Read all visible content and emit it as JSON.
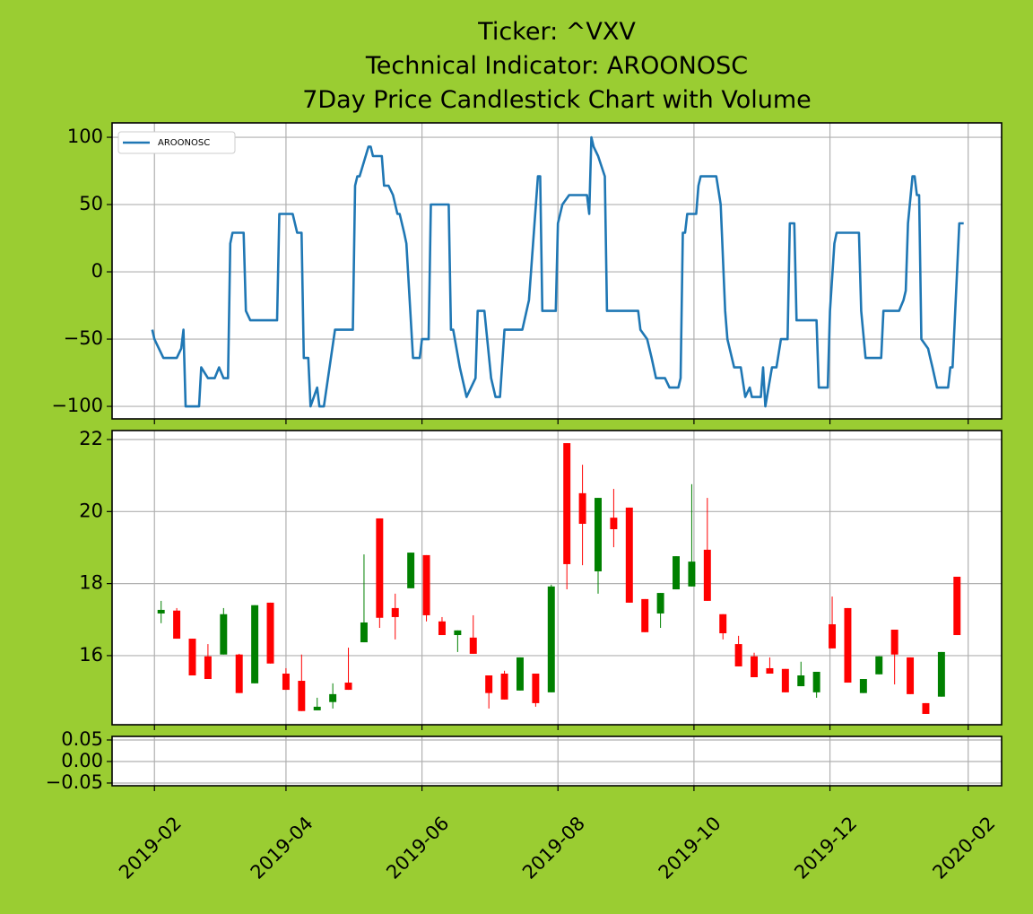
{
  "chart_data": [
    {
      "type": "line",
      "title": [
        "Ticker: ^VXV",
        "Technical Indicator: AROONOSC",
        "7Day Price Candlestick Chart with Volume"
      ],
      "x": [
        "2019-01-31",
        "2019-02-01",
        "2019-02-03",
        "2019-02-05",
        "2019-02-11",
        "2019-02-13",
        "2019-02-14",
        "2019-02-15",
        "2019-02-21",
        "2019-02-22",
        "2019-02-25",
        "2019-02-28",
        "2019-03-02",
        "2019-03-04",
        "2019-03-06",
        "2019-03-07",
        "2019-03-08",
        "2019-03-13",
        "2019-03-14",
        "2019-03-16",
        "2019-03-28",
        "2019-03-29",
        "2019-04-04",
        "2019-04-06",
        "2019-04-08",
        "2019-04-09",
        "2019-04-11",
        "2019-04-12",
        "2019-04-15",
        "2019-04-16",
        "2019-04-18",
        "2019-04-23",
        "2019-05-01",
        "2019-05-02",
        "2019-05-03",
        "2019-05-04",
        "2019-05-08",
        "2019-05-09",
        "2019-05-10",
        "2019-05-14",
        "2019-05-15",
        "2019-05-17",
        "2019-05-19",
        "2019-05-21",
        "2019-05-22",
        "2019-05-24",
        "2019-05-25",
        "2019-05-28",
        "2019-05-31",
        "2019-06-01",
        "2019-06-04",
        "2019-06-05",
        "2019-06-13",
        "2019-06-14",
        "2019-06-15",
        "2019-06-18",
        "2019-06-21",
        "2019-06-23",
        "2019-06-25",
        "2019-06-26",
        "2019-06-29",
        "2019-07-02",
        "2019-07-04",
        "2019-07-06",
        "2019-07-08",
        "2019-07-16",
        "2019-07-19",
        "2019-07-23",
        "2019-07-24",
        "2019-07-25",
        "2019-07-31",
        "2019-08-01",
        "2019-08-03",
        "2019-08-06",
        "2019-08-14",
        "2019-08-15",
        "2019-08-16",
        "2019-08-17",
        "2019-08-19",
        "2019-08-22",
        "2019-08-23",
        "2019-09-06",
        "2019-09-07",
        "2019-09-10",
        "2019-09-12",
        "2019-09-14",
        "2019-09-18",
        "2019-09-20",
        "2019-09-24",
        "2019-09-25",
        "2019-09-26",
        "2019-09-27",
        "2019-09-28",
        "2019-10-02",
        "2019-10-03",
        "2019-10-04",
        "2019-10-11",
        "2019-10-13",
        "2019-10-15",
        "2019-10-16",
        "2019-10-17",
        "2019-10-19",
        "2019-10-22",
        "2019-10-24",
        "2019-10-26",
        "2019-10-27",
        "2019-10-31",
        "2019-11-01",
        "2019-11-02",
        "2019-11-05",
        "2019-11-07",
        "2019-11-09",
        "2019-11-12",
        "2019-11-13",
        "2019-11-15",
        "2019-11-16",
        "2019-11-25",
        "2019-11-26",
        "2019-11-30",
        "2019-12-01",
        "2019-12-03",
        "2019-12-04",
        "2019-12-14",
        "2019-12-15",
        "2019-12-17",
        "2019-12-24",
        "2019-12-25",
        "2020-01-01",
        "2020-01-03",
        "2020-01-04",
        "2020-01-05",
        "2020-01-07",
        "2020-01-08",
        "2020-01-09",
        "2020-01-10",
        "2020-01-11",
        "2020-01-14",
        "2020-01-15",
        "2020-01-16",
        "2020-01-18",
        "2020-01-23",
        "2020-01-24",
        "2020-01-25",
        "2020-01-27",
        "2020-01-28",
        "2020-01-30"
      ],
      "series": [
        {
          "name": "AROONOSC",
          "color": "#1f77b4",
          "values": [
            -43,
            -50,
            -57,
            -64,
            -64,
            -57,
            -43,
            -100,
            -100,
            -71,
            -79,
            -79,
            -71,
            -79,
            -79,
            21,
            29,
            29,
            -29,
            -36,
            -36,
            43,
            43,
            29,
            29,
            -64,
            -64,
            -100,
            -86,
            -100,
            -100,
            -43,
            -43,
            64,
            71,
            71,
            93,
            93,
            86,
            86,
            64,
            64,
            57,
            43,
            43,
            29,
            21,
            -64,
            -64,
            -50,
            -50,
            50,
            50,
            -43,
            -43,
            -71,
            -93,
            -86,
            -79,
            -29,
            -29,
            -79,
            -93,
            -93,
            -43,
            -43,
            -21,
            71,
            71,
            -29,
            -29,
            36,
            50,
            57,
            57,
            43,
            100,
            93,
            86,
            71,
            -29,
            -29,
            -43,
            -50,
            -64,
            -79,
            -79,
            -86,
            -86,
            -79,
            29,
            29,
            43,
            43,
            64,
            71,
            71,
            50,
            -29,
            -50,
            -57,
            -71,
            -71,
            -93,
            -86,
            -93,
            -93,
            -71,
            -100,
            -71,
            -71,
            -50,
            -50,
            36,
            36,
            -36,
            -36,
            -86,
            -86,
            -29,
            21,
            29,
            29,
            -29,
            -64,
            -64,
            -29,
            -29,
            -21,
            -14,
            36,
            71,
            71,
            57,
            57,
            -50,
            -57,
            -64,
            -71,
            -86,
            -86,
            -71,
            -71,
            0,
            36,
            36
          ]
        }
      ],
      "xlim": [
        "2019-01-13",
        "2020-02-16"
      ],
      "xticks": [
        {
          "value": "2019-02-01",
          "label": "2019-02"
        },
        {
          "value": "2019-04-01",
          "label": "2019-04"
        },
        {
          "value": "2019-06-01",
          "label": "2019-06"
        },
        {
          "value": "2019-08-01",
          "label": "2019-08"
        },
        {
          "value": "2019-10-01",
          "label": "2019-10"
        },
        {
          "value": "2019-12-01",
          "label": "2019-12"
        },
        {
          "value": "2020-02-01",
          "label": "2020-02"
        }
      ],
      "ylim": [
        -109.3,
        110.7
      ],
      "yticks": [
        {
          "value": -100,
          "label": "−100"
        },
        {
          "value": -50,
          "label": "−50"
        },
        0,
        50,
        100
      ],
      "grid": true,
      "legend": "upper left"
    },
    {
      "type": "candlestick",
      "x": [
        "2019-02-04",
        "2019-02-11",
        "2019-02-18",
        "2019-02-25",
        "2019-03-04",
        "2019-03-11",
        "2019-03-18",
        "2019-03-25",
        "2019-04-01",
        "2019-04-08",
        "2019-04-15",
        "2019-04-22",
        "2019-04-29",
        "2019-05-06",
        "2019-05-13",
        "2019-05-20",
        "2019-05-27",
        "2019-06-03",
        "2019-06-10",
        "2019-06-17",
        "2019-06-24",
        "2019-07-01",
        "2019-07-08",
        "2019-07-15",
        "2019-07-22",
        "2019-07-29",
        "2019-08-05",
        "2019-08-12",
        "2019-08-19",
        "2019-08-26",
        "2019-09-02",
        "2019-09-09",
        "2019-09-16",
        "2019-09-23",
        "2019-09-30",
        "2019-10-07",
        "2019-10-14",
        "2019-10-21",
        "2019-10-28",
        "2019-11-04",
        "2019-11-11",
        "2019-11-18",
        "2019-11-25",
        "2019-12-02",
        "2019-12-09",
        "2019-12-16",
        "2019-12-23",
        "2019-12-30",
        "2020-01-06",
        "2020-01-13",
        "2020-01-20",
        "2020-01-27"
      ],
      "open": [
        17.17,
        17.25,
        16.47,
        15.98,
        16.03,
        16.03,
        15.23,
        17.47,
        15.5,
        15.3,
        14.48,
        14.71,
        15.25,
        16.37,
        19.81,
        17.32,
        17.87,
        18.79,
        16.95,
        16.57,
        16.5,
        15.45,
        15.5,
        15.03,
        15.5,
        14.98,
        21.9,
        20.51,
        18.34,
        19.83,
        20.11,
        17.57,
        17.17,
        17.84,
        17.92,
        18.94,
        17.15,
        16.32,
        15.98,
        15.65,
        15.63,
        15.15,
        14.98,
        16.87,
        17.32,
        14.96,
        15.48,
        16.72,
        15.95,
        14.68,
        14.86,
        18.19
      ],
      "high": [
        17.52,
        17.32,
        16.47,
        16.32,
        17.32,
        16.05,
        17.4,
        17.47,
        15.65,
        16.03,
        14.83,
        15.23,
        16.22,
        18.81,
        19.81,
        17.72,
        18.86,
        18.79,
        17.07,
        16.7,
        17.12,
        15.45,
        15.58,
        15.95,
        15.5,
        17.97,
        21.9,
        21.3,
        20.38,
        20.63,
        20.11,
        17.57,
        17.74,
        18.76,
        20.76,
        20.38,
        17.15,
        16.55,
        16.08,
        15.95,
        15.63,
        15.83,
        15.55,
        17.64,
        17.32,
        15.35,
        15.98,
        16.72,
        15.95,
        14.68,
        16.1,
        18.19
      ],
      "low": [
        16.9,
        16.47,
        15.45,
        15.35,
        16.03,
        14.96,
        15.23,
        15.78,
        15.05,
        14.46,
        14.48,
        14.53,
        15.05,
        16.37,
        16.77,
        16.45,
        17.87,
        16.95,
        16.57,
        16.1,
        16.05,
        14.53,
        14.78,
        15.03,
        14.58,
        14.98,
        17.84,
        18.51,
        17.72,
        19.01,
        17.47,
        16.65,
        16.77,
        17.84,
        17.92,
        17.52,
        16.45,
        15.7,
        15.4,
        15.5,
        14.98,
        15.15,
        14.83,
        16.2,
        15.25,
        14.96,
        15.48,
        15.2,
        14.93,
        14.38,
        14.86,
        16.57
      ],
      "close": [
        17.27,
        16.47,
        15.45,
        15.35,
        17.15,
        14.96,
        17.4,
        15.78,
        15.05,
        14.46,
        14.58,
        14.93,
        15.05,
        16.92,
        17.05,
        17.07,
        18.86,
        17.12,
        16.57,
        16.7,
        16.05,
        14.96,
        14.78,
        15.95,
        14.68,
        17.92,
        18.54,
        19.66,
        20.38,
        19.51,
        17.47,
        16.65,
        17.74,
        18.76,
        18.61,
        17.52,
        16.62,
        15.7,
        15.4,
        15.5,
        14.98,
        15.45,
        15.55,
        16.2,
        15.25,
        15.35,
        15.98,
        16.03,
        14.93,
        14.38,
        16.1,
        16.57
      ],
      "up_color": "green",
      "down_color": "red",
      "xlim": [
        "2019-01-13",
        "2020-02-16"
      ],
      "xticks": [
        {
          "value": "2019-02-01",
          "label": "2019-02"
        },
        {
          "value": "2019-04-01",
          "label": "2019-04"
        },
        {
          "value": "2019-06-01",
          "label": "2019-06"
        },
        {
          "value": "2019-08-01",
          "label": "2019-08"
        },
        {
          "value": "2019-10-01",
          "label": "2019-10"
        },
        {
          "value": "2019-12-01",
          "label": "2019-12"
        },
        {
          "value": "2020-02-01",
          "label": "2020-02"
        }
      ],
      "ylim": [
        14.08,
        22.25
      ],
      "yticks": [
        16,
        18,
        20,
        22
      ],
      "grid": true
    },
    {
      "type": "bar",
      "x": [],
      "values": [],
      "xlim": [
        "2019-01-13",
        "2020-02-16"
      ],
      "xticks": [
        {
          "value": "2019-02-01",
          "label": "2019-02"
        },
        {
          "value": "2019-04-01",
          "label": "2019-04"
        },
        {
          "value": "2019-06-01",
          "label": "2019-06"
        },
        {
          "value": "2019-08-01",
          "label": "2019-08"
        },
        {
          "value": "2019-10-01",
          "label": "2019-10"
        },
        {
          "value": "2019-12-01",
          "label": "2019-12"
        },
        {
          "value": "2020-02-01",
          "label": "2020-02"
        }
      ],
      "ylim": [
        -0.0563,
        0.0583
      ],
      "yticks": [
        {
          "value": -0.05,
          "label": "−0.05"
        },
        {
          "value": 0,
          "label": "0.00"
        },
        {
          "value": 0.05,
          "label": "0.05"
        }
      ],
      "grid": true
    }
  ]
}
